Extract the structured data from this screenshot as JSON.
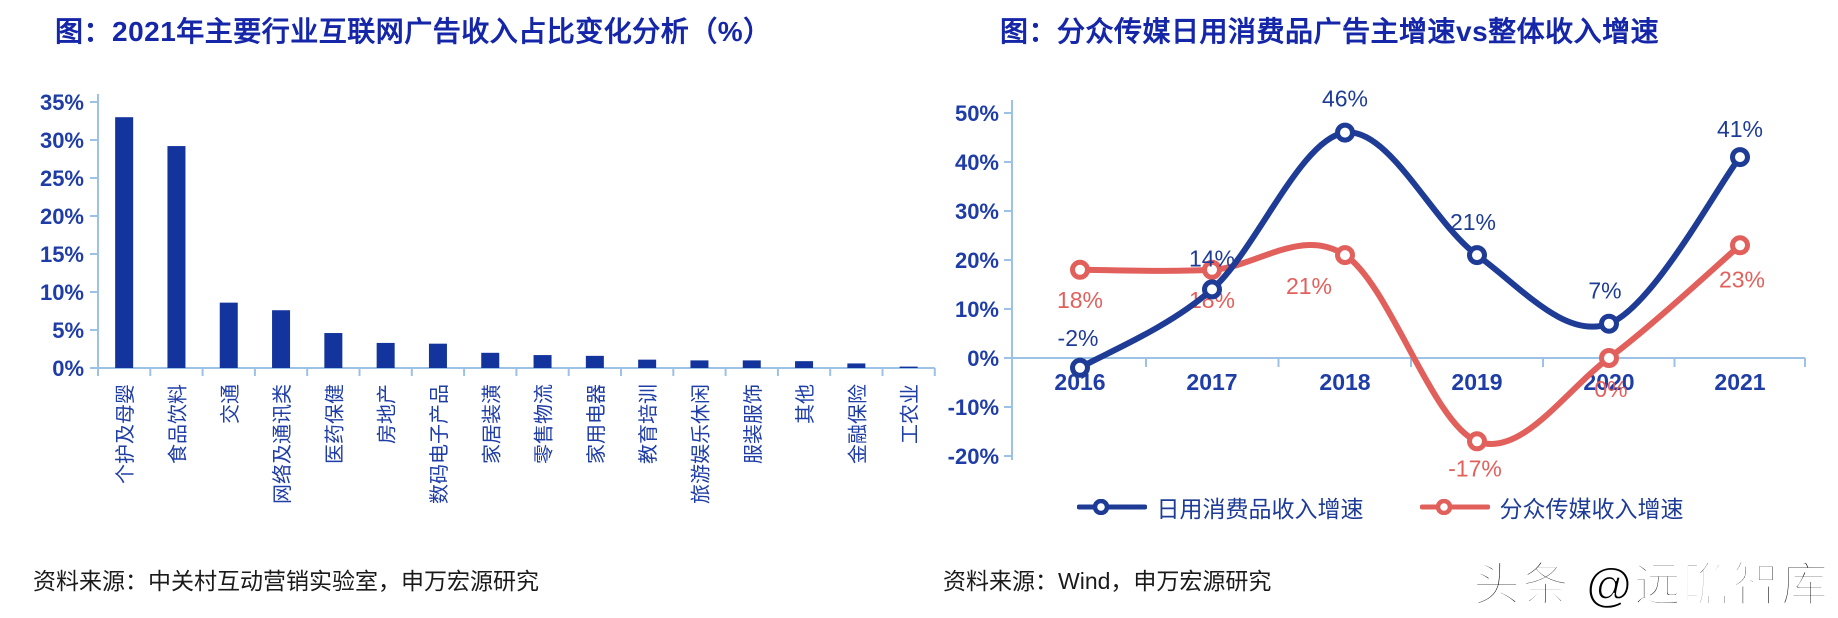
{
  "left_chart": {
    "title": "图：2021年主要行业互联网广告收入占比变化分析（%）",
    "source": "资料来源：中关村互动营销实验室，申万宏源研究"
  },
  "right_chart": {
    "title": "图：分众传媒日用消费品广告主增速vs整体收入增速",
    "source": "资料来源：Wind，申万宏源研究"
  },
  "watermark": "头条 @远瞻智库",
  "colors": {
    "title_blue": "#1527A8",
    "axis_text_blue": "#1F3DA6",
    "bar_blue": "#12349C",
    "line_blue": "#1E3C96",
    "line_red": "#E2605C",
    "axis_line_light": "#9CC2E5",
    "text_black": "#1A1A1A"
  },
  "chart_data": [
    {
      "type": "bar",
      "title": "2021年主要行业互联网广告收入占比变化分析（%）",
      "categories": [
        "个护及母婴",
        "食品饮料",
        "交通",
        "网络及通讯类",
        "医药保健",
        "房地产",
        "数码电子产品",
        "家居装潢",
        "零售物流",
        "家用电器",
        "教育培训",
        "旅游娱乐休闲",
        "服装服饰",
        "其他",
        "金融保险",
        "工农业"
      ],
      "values": [
        33,
        29.2,
        8.6,
        7.6,
        4.6,
        3.3,
        3.2,
        2.0,
        1.7,
        1.6,
        1.1,
        1.0,
        1.0,
        0.9,
        0.6,
        0.1
      ],
      "ylim": [
        0,
        35
      ],
      "ytick_step": 5,
      "ytick_labels": [
        "0%",
        "5%",
        "10%",
        "15%",
        "20%",
        "25%",
        "30%",
        "35%"
      ],
      "unit": "%",
      "grid": false
    },
    {
      "type": "line",
      "title": "分众传媒日用消费品广告主增速vs整体收入增速",
      "categories": [
        "2016",
        "2017",
        "2018",
        "2019",
        "2020",
        "2021"
      ],
      "series": [
        {
          "name": "日用消费品收入增速",
          "color": "#1E3C96",
          "values": [
            -2,
            14,
            46,
            21,
            7,
            41
          ],
          "data_labels": [
            "-2%",
            "14%",
            "46%",
            "21%",
            "7%",
            "41%"
          ],
          "label_offsets": [
            [
              -2,
              -22
            ],
            [
              0,
              -23
            ],
            [
              0,
              -26
            ],
            [
              -4,
              -25
            ],
            [
              -4,
              -25
            ],
            [
              0,
              -20
            ]
          ]
        },
        {
          "name": "分众传媒收入增速",
          "color": "#E2605C",
          "values": [
            18,
            18,
            21,
            -17,
            0,
            23
          ],
          "data_labels": [
            "18%",
            "18%",
            "21%",
            "-17%",
            "0%",
            "23%"
          ],
          "label_offsets": [
            [
              0,
              38
            ],
            [
              0,
              38
            ],
            [
              -36,
              39
            ],
            [
              -2,
              35
            ],
            [
              2,
              39
            ],
            [
              2,
              42
            ]
          ]
        }
      ],
      "ylim": [
        -20,
        50
      ],
      "ytick_step": 10,
      "ytick_labels": [
        "-20%",
        "-10%",
        "0%",
        "10%",
        "20%",
        "30%",
        "40%",
        "50%"
      ],
      "grid": false,
      "legend_position": "bottom",
      "smooth": true
    }
  ]
}
